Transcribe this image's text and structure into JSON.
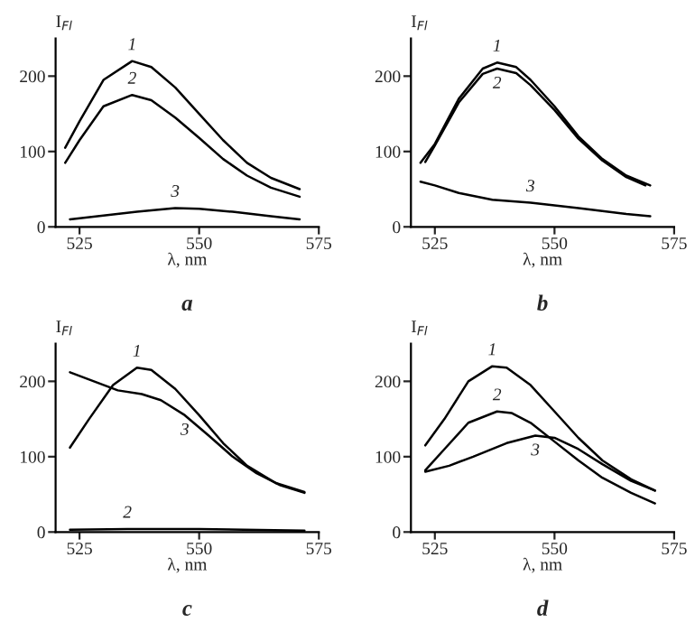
{
  "chart_data": [
    {
      "type": "line",
      "title": "a",
      "xlabel": "λ, nm",
      "ylabel": "I$_{Fl}$",
      "xlim": [
        520,
        575
      ],
      "xticks": [
        525,
        550,
        575
      ],
      "ylim": [
        0,
        250
      ],
      "yticks": [
        0,
        100,
        200
      ],
      "grid": false,
      "legend": false,
      "series": [
        {
          "name": "1",
          "color": "#000000",
          "x": [
            522,
            525,
            530,
            536,
            540,
            545,
            550,
            555,
            560,
            565,
            571
          ],
          "values": [
            105,
            140,
            195,
            220,
            212,
            185,
            150,
            115,
            85,
            65,
            50
          ]
        },
        {
          "name": "2",
          "color": "#000000",
          "x": [
            522,
            525,
            530,
            536,
            540,
            545,
            550,
            555,
            560,
            565,
            571
          ],
          "values": [
            85,
            115,
            160,
            175,
            168,
            145,
            118,
            90,
            68,
            52,
            40
          ]
        },
        {
          "name": "3",
          "color": "#000000",
          "x": [
            523,
            530,
            537,
            545,
            550,
            557,
            565,
            571
          ],
          "values": [
            10,
            15,
            20,
            25,
            24,
            20,
            14,
            10
          ]
        }
      ]
    },
    {
      "type": "line",
      "title": "b",
      "xlabel": "λ, nm",
      "ylabel": "I$_{Fl}$",
      "xlim": [
        520,
        575
      ],
      "xticks": [
        525,
        550,
        575
      ],
      "ylim": [
        0,
        250
      ],
      "yticks": [
        0,
        100,
        200
      ],
      "grid": false,
      "legend": false,
      "series": [
        {
          "name": "1",
          "color": "#000000",
          "x": [
            522,
            525,
            530,
            535,
            538,
            542,
            545,
            550,
            555,
            560,
            565,
            570
          ],
          "values": [
            85,
            110,
            170,
            210,
            218,
            212,
            195,
            160,
            120,
            90,
            68,
            55
          ]
        },
        {
          "name": "2",
          "color": "#000000",
          "x": [
            523,
            525,
            530,
            535,
            538,
            542,
            545,
            550,
            555,
            560,
            565,
            569
          ],
          "values": [
            86,
            108,
            165,
            203,
            210,
            204,
            188,
            155,
            117,
            88,
            66,
            55
          ]
        },
        {
          "name": "3",
          "color": "#000000",
          "x": [
            522,
            525,
            530,
            537,
            545,
            555,
            565,
            570
          ],
          "values": [
            60,
            55,
            45,
            36,
            32,
            25,
            17,
            14
          ]
        }
      ]
    },
    {
      "type": "line",
      "title": "c",
      "xlabel": "λ, nm",
      "ylabel": "I$_{Fl}$",
      "xlim": [
        520,
        575
      ],
      "xticks": [
        525,
        550,
        575
      ],
      "ylim": [
        0,
        250
      ],
      "yticks": [
        0,
        100,
        200
      ],
      "grid": false,
      "legend": false,
      "series": [
        {
          "name": "1",
          "color": "#000000",
          "x": [
            523,
            527,
            532,
            537,
            540,
            545,
            550,
            555,
            560,
            566,
            572
          ],
          "values": [
            112,
            150,
            195,
            218,
            215,
            190,
            155,
            118,
            88,
            65,
            53
          ]
        },
        {
          "name": "2",
          "color": "#000000",
          "x": [
            523,
            535,
            550,
            572
          ],
          "values": [
            3,
            4,
            4,
            2
          ]
        },
        {
          "name": "3",
          "color": "#000000",
          "x": [
            523,
            528,
            533,
            538,
            542,
            547,
            552,
            557,
            562,
            567,
            572
          ],
          "values": [
            212,
            200,
            188,
            183,
            175,
            155,
            128,
            100,
            78,
            62,
            52
          ]
        }
      ]
    },
    {
      "type": "line",
      "title": "d",
      "xlabel": "λ, nm",
      "ylabel": "I$_{Fl}$",
      "xlim": [
        520,
        575
      ],
      "xticks": [
        525,
        550,
        575
      ],
      "ylim": [
        0,
        250
      ],
      "yticks": [
        0,
        100,
        200
      ],
      "grid": false,
      "legend": false,
      "series": [
        {
          "name": "1",
          "color": "#000000",
          "x": [
            523,
            527,
            532,
            537,
            540,
            545,
            550,
            555,
            560,
            566,
            571
          ],
          "values": [
            115,
            150,
            200,
            220,
            218,
            195,
            160,
            125,
            95,
            70,
            55
          ]
        },
        {
          "name": "2",
          "color": "#000000",
          "x": [
            523,
            527,
            532,
            538,
            541,
            545,
            550,
            555,
            560,
            566,
            571
          ],
          "values": [
            82,
            110,
            145,
            160,
            158,
            145,
            120,
            95,
            72,
            52,
            38
          ]
        },
        {
          "name": "3",
          "color": "#000000",
          "x": [
            523,
            528,
            533,
            540,
            546,
            550,
            555,
            560,
            566,
            571
          ],
          "values": [
            80,
            88,
            100,
            118,
            128,
            125,
            110,
            90,
            68,
            55
          ]
        }
      ]
    }
  ]
}
